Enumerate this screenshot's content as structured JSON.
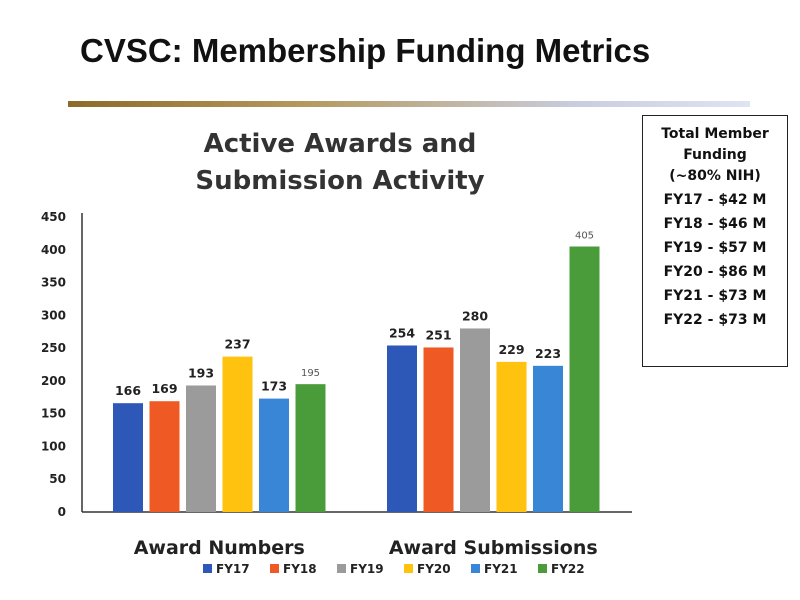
{
  "slide": {
    "title": "CVSC: Membership Funding Metrics"
  },
  "funding_box": {
    "title_lines": [
      "Total Member",
      "Funding",
      "(~80% NIH)"
    ],
    "lines": [
      "FY17 - $42 M",
      "FY18 - $46 M",
      "FY19 - $57 M",
      "FY20 - $86 M",
      "FY21 - $73 M",
      "FY22 - $73 M"
    ]
  },
  "chart_data": {
    "type": "bar",
    "title_lines": [
      "Active Awards and",
      "Submission Activity"
    ],
    "categories": [
      "Award Numbers",
      "Award Submissions"
    ],
    "series": [
      {
        "name": "FY17",
        "color": "#2e58b8",
        "values": [
          166,
          254
        ]
      },
      {
        "name": "FY18",
        "color": "#ef5a24",
        "values": [
          169,
          251
        ]
      },
      {
        "name": "FY19",
        "color": "#9b9b9b",
        "values": [
          193,
          280
        ]
      },
      {
        "name": "FY20",
        "color": "#ffc20e",
        "values": [
          237,
          229
        ]
      },
      {
        "name": "FY21",
        "color": "#3a86d6",
        "values": [
          173,
          223
        ]
      },
      {
        "name": "FY22",
        "color": "#4a9c3a",
        "values": [
          195,
          405
        ]
      }
    ],
    "ylim": [
      0,
      450
    ],
    "yticks": [
      0,
      50,
      100,
      150,
      200,
      250,
      300,
      350,
      400,
      450
    ],
    "grid": false,
    "legend": "bottom"
  }
}
